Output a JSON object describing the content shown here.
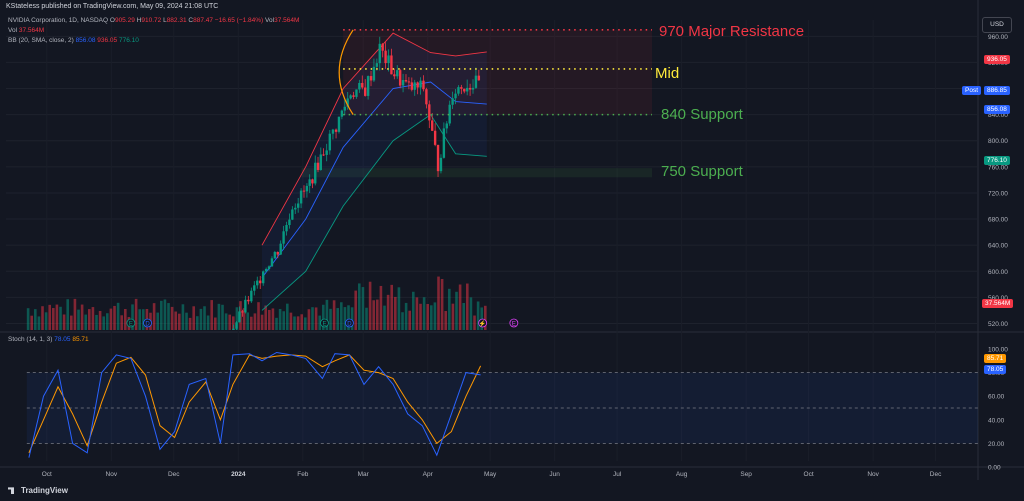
{
  "banner": "KStateless published on TradingView.com, May 09, 2024 21:08 UTC",
  "header": {
    "symbol": "NVIDIA Corporation, 1D, NASDAQ",
    "o_label": "O",
    "o_val": "905.29",
    "h_label": "H",
    "h_val": "910.72",
    "l_label": "L",
    "l_val": "882.31",
    "c_label": "C",
    "c_val": "887.47",
    "change": "−16.65 (−1.84%)",
    "vol_inline_label": "Vol",
    "vol_inline_val": "37.564M",
    "vol_label": "Vol",
    "vol_val": "37.564M",
    "bb_label": "BB (20, SMA, close, 2)",
    "bb_basis": "856.08",
    "bb_upper": "936.05",
    "bb_lower": "776.10",
    "stoch_label": "Stoch (14, 1, 3)",
    "stoch_k": "78.05",
    "stoch_d": "85.71"
  },
  "currency_button": "USD",
  "annotations": {
    "major_resistance": "970 Major Resistance",
    "mid": "Mid",
    "support_840": "840 Support",
    "support_750": "750 Support"
  },
  "price_tags": {
    "upper": "936.05",
    "post_label": "Post",
    "post": "886.85",
    "basis": "856.08",
    "lower": "776.10",
    "volume": "37.564M",
    "stoch_d": "85.71",
    "stoch_k": "78.05"
  },
  "footer": {
    "brand": "TradingView"
  },
  "colors": {
    "background": "#131722",
    "up": "#089981",
    "down": "#f23645",
    "resistance": "#f23645",
    "mid": "#ffeb3b",
    "support": "#4caf50",
    "bb_basis": "#2962ff",
    "bb_upper": "#f23645",
    "bb_lower": "#089981",
    "stoch_k": "#2962ff",
    "stoch_d": "#ff9800",
    "arc": "#ff9800"
  },
  "chart_data": [
    {
      "type": "candlestick",
      "title": "NVIDIA Corporation, 1D, NASDAQ",
      "x_ticks": [
        "Oct",
        "Nov",
        "Dec",
        "2024",
        "Feb",
        "Mar",
        "Apr",
        "May",
        "Jun",
        "Jul",
        "Aug",
        "Sep",
        "Oct",
        "Nov",
        "Dec"
      ],
      "y_ticks": [
        960,
        920,
        880,
        840,
        800,
        760,
        720,
        680,
        640,
        600,
        560,
        520
      ],
      "ylim": [
        510,
        985
      ],
      "date_range": [
        "2023-10-01",
        "2024-05-09"
      ],
      "levels": [
        {
          "name": "970 Major Resistance",
          "value": 970
        },
        {
          "name": "Mid",
          "value": 910
        },
        {
          "name": "840 Support",
          "value": 840
        },
        {
          "name": "750 Support",
          "value": 750
        }
      ],
      "ohlc_points": [
        [
          "2024-01-22",
          598,
          606,
          594,
          602
        ],
        [
          "2024-01-29",
          606,
          640,
          600,
          632
        ],
        [
          "2024-02-05",
          635,
          722,
          630,
          700
        ],
        [
          "2024-02-12",
          698,
          742,
          690,
          726
        ],
        [
          "2024-02-20",
          720,
          790,
          684,
          785
        ],
        [
          "2024-02-26",
          790,
          824,
          780,
          822
        ],
        [
          "2024-03-04",
          840,
          975,
          830,
          875
        ],
        [
          "2024-03-11",
          870,
          925,
          840,
          878
        ],
        [
          "2024-03-18",
          876,
          965,
          850,
          940
        ],
        [
          "2024-03-25",
          942,
          975,
          890,
          903
        ],
        [
          "2024-04-01",
          903,
          922,
          850,
          880
        ],
        [
          "2024-04-08",
          880,
          906,
          861,
          881
        ],
        [
          "2024-04-15",
          883,
          900,
          762,
          762
        ],
        [
          "2024-04-22",
          795,
          880,
          792,
          877
        ],
        [
          "2024-04-29",
          877,
          900,
          812,
          887
        ],
        [
          "2024-05-06",
          905,
          925,
          882,
          887
        ]
      ],
      "bollinger": {
        "basis": 856.08,
        "upper": 936.05,
        "lower": 776.1
      },
      "volume_last": "37.564M"
    },
    {
      "type": "line",
      "title": "Stoch (14, 1, 3)",
      "y_ticks": [
        100,
        80,
        60,
        40,
        20,
        0
      ],
      "ylim": [
        0,
        100
      ],
      "bands": [
        20,
        50,
        80
      ],
      "series": [
        {
          "name": "%K",
          "last": 78.05
        },
        {
          "name": "%D",
          "last": 85.71
        }
      ],
      "points": [
        [
          "2023-10-02",
          8,
          12
        ],
        [
          "2023-10-09",
          60,
          40
        ],
        [
          "2023-10-16",
          82,
          68
        ],
        [
          "2023-10-23",
          20,
          45
        ],
        [
          "2023-10-30",
          12,
          18
        ],
        [
          "2023-11-06",
          80,
          55
        ],
        [
          "2023-11-13",
          95,
          88
        ],
        [
          "2023-11-20",
          92,
          93
        ],
        [
          "2023-11-27",
          60,
          78
        ],
        [
          "2023-12-04",
          15,
          35
        ],
        [
          "2023-12-11",
          30,
          25
        ],
        [
          "2023-12-18",
          70,
          55
        ],
        [
          "2023-12-26",
          75,
          72
        ],
        [
          "2024-01-02",
          20,
          40
        ],
        [
          "2024-01-08",
          95,
          70
        ],
        [
          "2024-01-16",
          96,
          95
        ],
        [
          "2024-01-22",
          90,
          92
        ],
        [
          "2024-01-29",
          97,
          94
        ],
        [
          "2024-02-05",
          95,
          95
        ],
        [
          "2024-02-12",
          92,
          94
        ],
        [
          "2024-02-20",
          75,
          85
        ],
        [
          "2024-02-26",
          96,
          90
        ],
        [
          "2024-03-04",
          95,
          95
        ],
        [
          "2024-03-11",
          70,
          82
        ],
        [
          "2024-03-18",
          85,
          80
        ],
        [
          "2024-03-25",
          70,
          75
        ],
        [
          "2024-04-01",
          45,
          55
        ],
        [
          "2024-04-08",
          35,
          40
        ],
        [
          "2024-04-15",
          10,
          20
        ],
        [
          "2024-04-22",
          45,
          30
        ],
        [
          "2024-04-29",
          80,
          60
        ],
        [
          "2024-05-06",
          78.05,
          85.71
        ]
      ]
    }
  ]
}
